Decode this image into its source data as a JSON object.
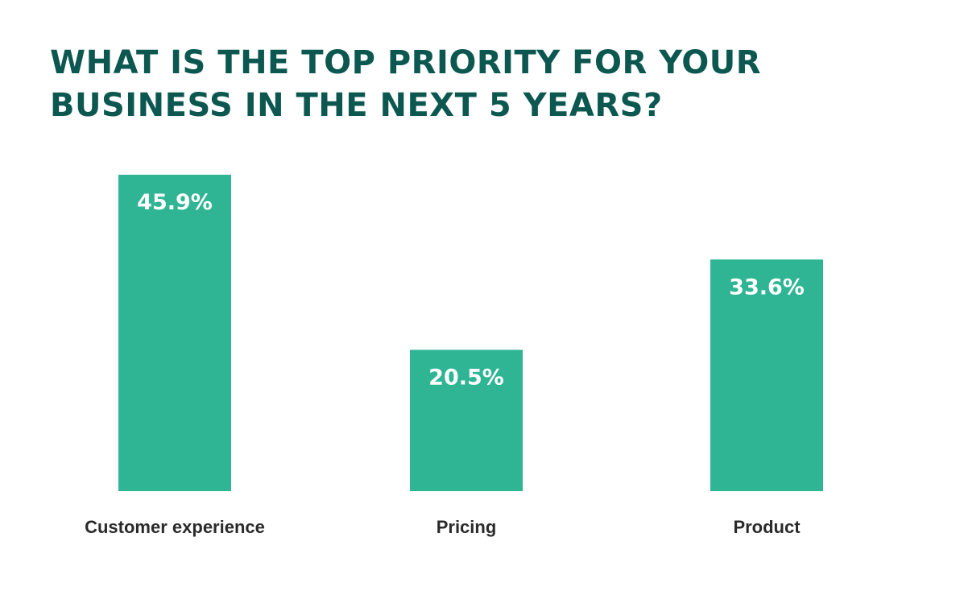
{
  "chart_data": {
    "type": "bar",
    "title": "WHAT IS THE TOP PRIORITY FOR YOUR\nBUSINESS IN THE NEXT 5 YEARS?",
    "categories": [
      "Customer experience",
      "Pricing",
      "Product"
    ],
    "values": [
      45.9,
      20.5,
      33.6
    ],
    "value_labels": [
      "45.9%",
      "20.5%",
      "33.6%"
    ],
    "unit": "%",
    "ylim": [
      0,
      45.9
    ],
    "grid": false,
    "legend": "none",
    "colors": {
      "bar": "#2fb594",
      "title": "#0c5850",
      "value_label": "#ffffff",
      "category_label": "#2a2a2a"
    }
  }
}
